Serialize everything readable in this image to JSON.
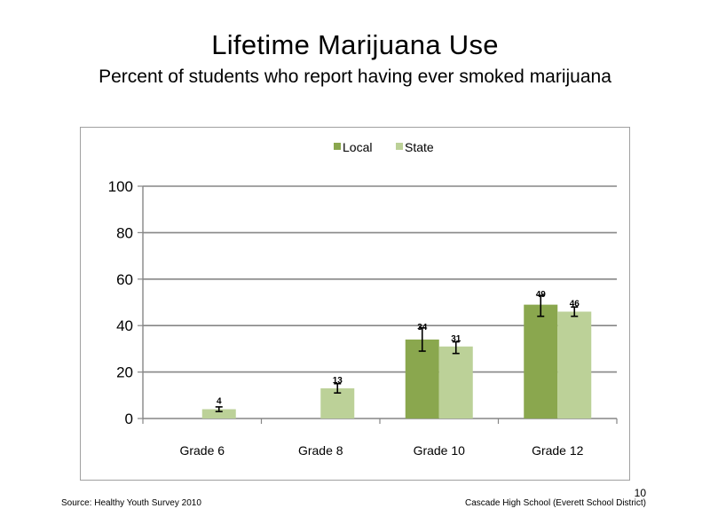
{
  "slide": {
    "title": "Lifetime  Marijuana  Use",
    "subtitle": "Percent  of students  who report having  ever smoked  marijuana",
    "source": "Source: Healthy  Youth Survey 2010",
    "school": "Cascade High  School  (Everett School District)",
    "page_number": "10"
  },
  "chart_data": {
    "type": "bar",
    "categories": [
      "Grade 6",
      "Grade 8",
      "Grade 10",
      "Grade 12"
    ],
    "series": [
      {
        "name": "Local",
        "color": "#8aa74e",
        "values": [
          null,
          null,
          34,
          49
        ],
        "labels": [
          "",
          "",
          "34",
          "49"
        ],
        "error_low": [
          null,
          null,
          29,
          44
        ],
        "error_high": [
          null,
          null,
          39,
          53
        ]
      },
      {
        "name": "State",
        "color": "#bcd198",
        "values": [
          4,
          13,
          31,
          46
        ],
        "labels": [
          "4",
          "13",
          "31",
          "46"
        ],
        "error_low": [
          3,
          11,
          28,
          44
        ],
        "error_high": [
          5,
          15,
          33,
          48
        ]
      }
    ],
    "title": "",
    "xlabel": "",
    "ylabel": "",
    "ylim": [
      0,
      100
    ],
    "yticks": [
      0,
      20,
      40,
      60,
      80,
      100
    ],
    "ytick_labels": [
      "0",
      "20",
      "40",
      "60",
      "80",
      "100"
    ],
    "grid": true,
    "legend": "top-center",
    "error_bars": true,
    "gridline_color": "#868686",
    "axis_color": "#868686"
  }
}
